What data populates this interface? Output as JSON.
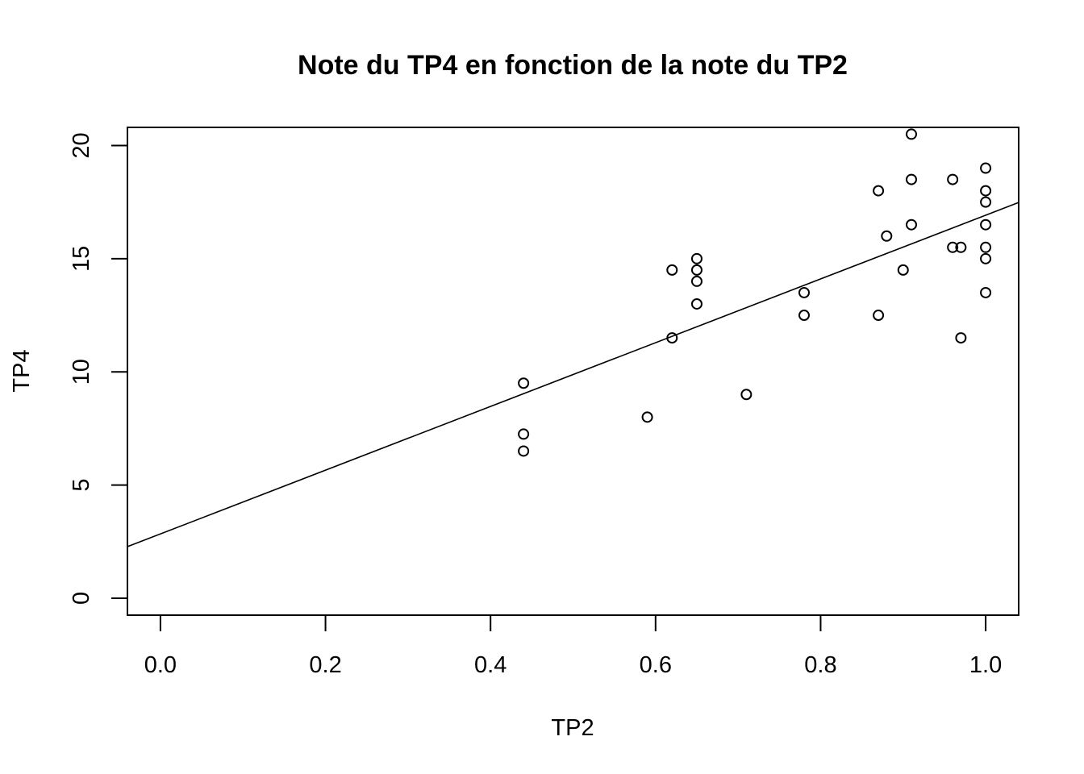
{
  "chart_data": {
    "type": "scatter",
    "title": "Note du TP4 en fonction de la note du TP2",
    "xlabel": "TP2",
    "ylabel": "TP4",
    "xlim": [
      -0.04,
      1.04
    ],
    "ylim": [
      -0.75,
      20.8
    ],
    "x_ticks": [
      0.0,
      0.2,
      0.4,
      0.6,
      0.8,
      1.0
    ],
    "x_tick_labels": [
      "0.0",
      "0.2",
      "0.4",
      "0.6",
      "0.8",
      "1.0"
    ],
    "y_ticks": [
      0,
      5,
      10,
      15,
      20
    ],
    "y_tick_labels": [
      "0",
      "5",
      "10",
      "15",
      "20"
    ],
    "grid": false,
    "points": [
      {
        "x": 0.44,
        "y": 9.5
      },
      {
        "x": 0.44,
        "y": 7.25
      },
      {
        "x": 0.44,
        "y": 6.5
      },
      {
        "x": 0.59,
        "y": 8.0
      },
      {
        "x": 0.62,
        "y": 14.5
      },
      {
        "x": 0.62,
        "y": 11.5
      },
      {
        "x": 0.65,
        "y": 15.0
      },
      {
        "x": 0.65,
        "y": 14.5
      },
      {
        "x": 0.65,
        "y": 14.0
      },
      {
        "x": 0.65,
        "y": 13.0
      },
      {
        "x": 0.71,
        "y": 9.0
      },
      {
        "x": 0.78,
        "y": 13.5
      },
      {
        "x": 0.78,
        "y": 12.5
      },
      {
        "x": 0.87,
        "y": 18.0
      },
      {
        "x": 0.87,
        "y": 12.5
      },
      {
        "x": 0.88,
        "y": 16.0
      },
      {
        "x": 0.9,
        "y": 14.5
      },
      {
        "x": 0.91,
        "y": 20.5
      },
      {
        "x": 0.91,
        "y": 18.5
      },
      {
        "x": 0.91,
        "y": 16.5
      },
      {
        "x": 0.96,
        "y": 18.5
      },
      {
        "x": 0.96,
        "y": 15.5
      },
      {
        "x": 0.97,
        "y": 15.5
      },
      {
        "x": 0.97,
        "y": 11.5
      },
      {
        "x": 1.0,
        "y": 19.0
      },
      {
        "x": 1.0,
        "y": 18.0
      },
      {
        "x": 1.0,
        "y": 17.5
      },
      {
        "x": 1.0,
        "y": 16.5
      },
      {
        "x": 1.0,
        "y": 15.5
      },
      {
        "x": 1.0,
        "y": 15.0
      },
      {
        "x": 1.0,
        "y": 13.5
      }
    ],
    "regression_line": {
      "intercept": 2.84,
      "slope": 14.08
    }
  }
}
